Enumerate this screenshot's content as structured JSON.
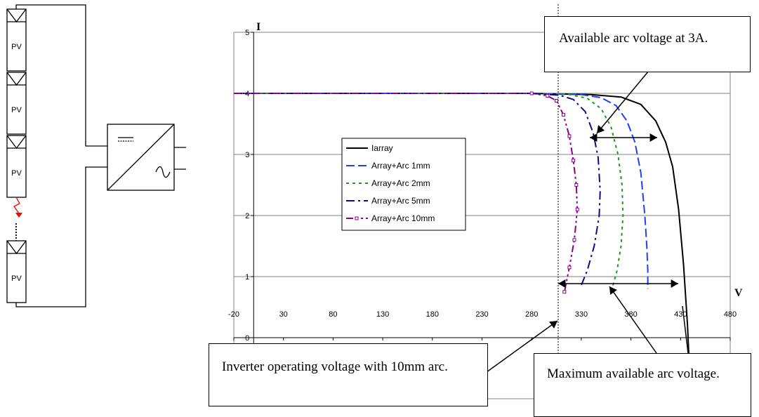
{
  "diagram": {
    "modules": [
      "PV",
      "PV",
      "PV",
      "PV"
    ],
    "inverter_dc_symbol": "dc-symbol",
    "inverter_ac_symbol": "sine-wave",
    "fault_color": "#ff0000"
  },
  "chart_data": {
    "type": "line",
    "x_axis_label": "V",
    "y_axis_label": "I",
    "xlim": [
      -20,
      480
    ],
    "ylim": [
      -1,
      5
    ],
    "x_ticks": [
      -20,
      30,
      80,
      130,
      180,
      230,
      280,
      330,
      380,
      430,
      480
    ],
    "y_ticks": [
      0,
      1,
      2,
      3,
      4,
      5
    ],
    "y_tick_labels": [
      "0",
      "1",
      "2",
      "3",
      "4",
      "5"
    ],
    "grid": "horizontal",
    "legend_position": "left-center",
    "series": [
      {
        "name": "Iarray",
        "color": "#000000",
        "dash": "solid",
        "marker": "none",
        "x": [
          -20,
          280,
          340,
          370,
          390,
          405,
          415,
          422,
          428,
          433,
          437,
          440
        ],
        "y": [
          4,
          4,
          3.98,
          3.94,
          3.82,
          3.55,
          3.2,
          2.8,
          2.1,
          1.2,
          0.2,
          -0.9
        ]
      },
      {
        "name": "Array+Arc 1mm",
        "color": "#1f3fff",
        "dash": "long",
        "marker": "none",
        "x": [
          -20,
          280,
          330,
          350,
          365,
          376,
          384,
          390,
          394,
          396,
          397,
          397
        ],
        "y": [
          4,
          4,
          3.98,
          3.93,
          3.8,
          3.55,
          3.2,
          2.7,
          2.0,
          1.5,
          1.1,
          0.8
        ]
      },
      {
        "name": "Array+Arc 2mm",
        "color": "#1a9a1a",
        "dash": "dotted",
        "marker": "none",
        "x": [
          -20,
          280,
          318,
          336,
          350,
          360,
          367,
          371,
          372,
          370,
          366,
          361
        ],
        "y": [
          4,
          4,
          3.98,
          3.92,
          3.75,
          3.45,
          3.0,
          2.5,
          2.0,
          1.5,
          1.1,
          0.8
        ]
      },
      {
        "name": "Array+Arc 5mm",
        "color": "#0a0a8a",
        "dash": "dashdot",
        "marker": "none",
        "x": [
          -20,
          280,
          308,
          322,
          334,
          342,
          347,
          349,
          348,
          343,
          336,
          329
        ],
        "y": [
          4,
          4,
          3.97,
          3.9,
          3.7,
          3.35,
          2.95,
          2.4,
          2.0,
          1.5,
          1.1,
          0.82
        ]
      },
      {
        "name": "Array+Arc 10mm",
        "color": "#8b008b",
        "dash": "dashdotdot",
        "marker": "square",
        "x": [
          -20,
          280,
          296,
          305,
          312,
          318,
          322,
          325,
          326,
          323,
          318,
          313
        ],
        "y": [
          4,
          4,
          3.96,
          3.88,
          3.65,
          3.3,
          2.9,
          2.5,
          2.1,
          1.6,
          1.15,
          0.75
        ]
      }
    ],
    "annotations": [
      "Available arc voltage at 3A.",
      "Inverter operating voltage with 10mm arc.",
      "Maximum available arc voltage."
    ]
  }
}
